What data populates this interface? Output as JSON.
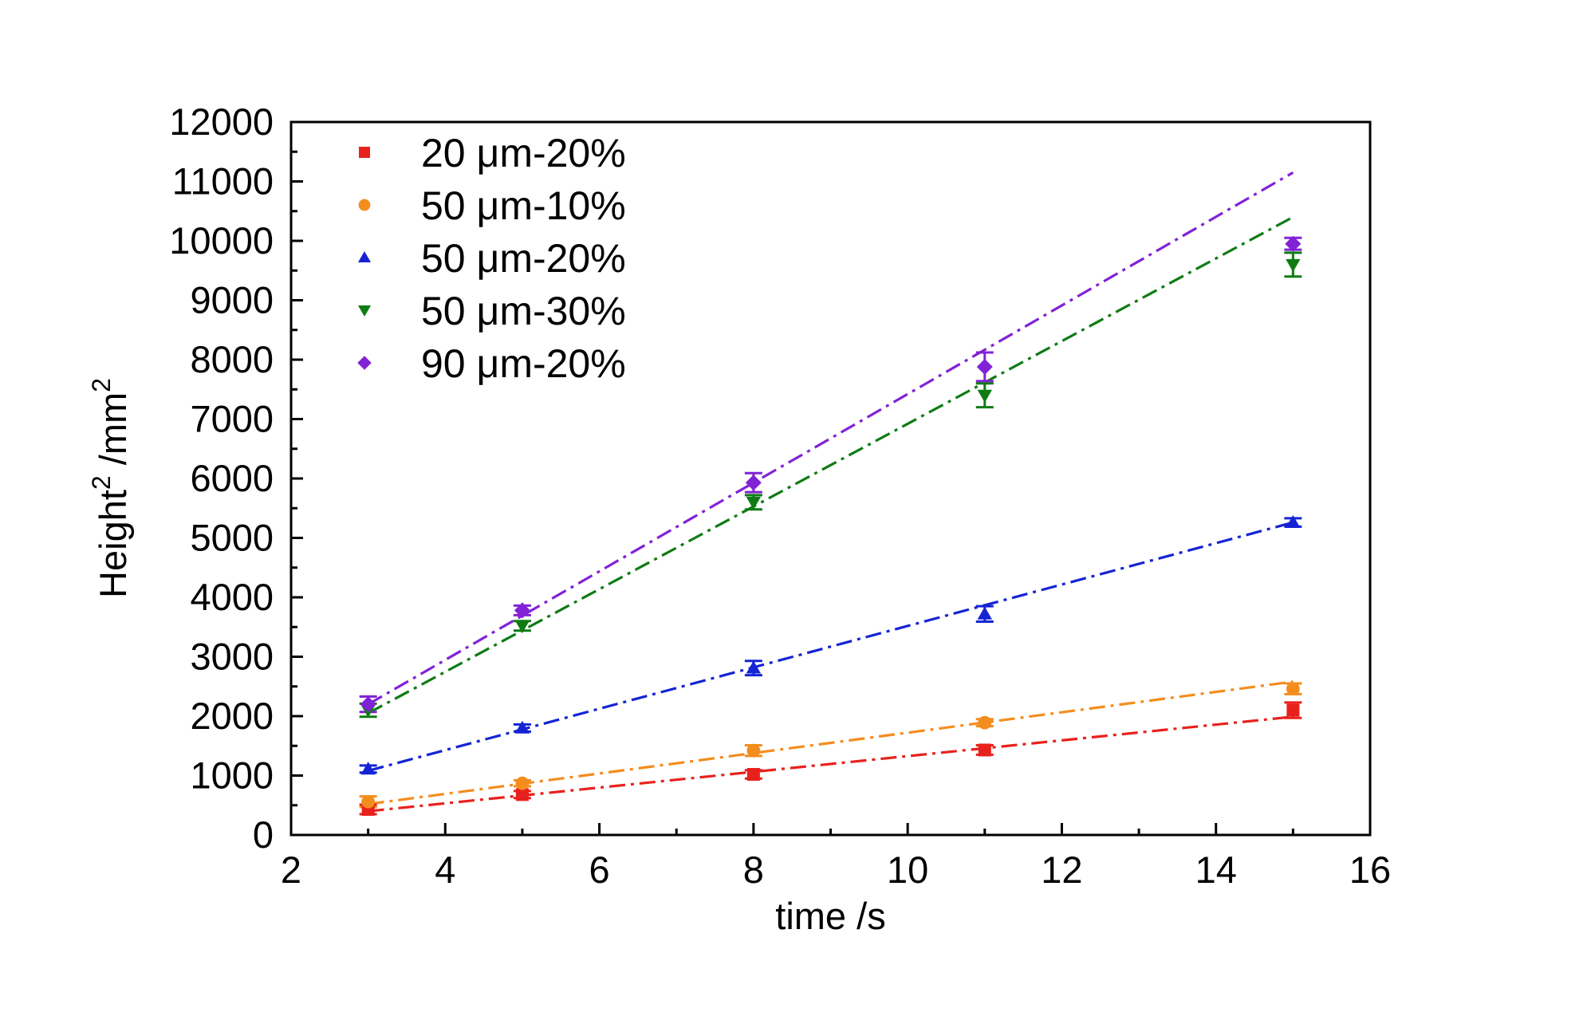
{
  "chart_data": {
    "type": "scatter",
    "title": "",
    "xlabel": "time /s",
    "ylabel": {
      "main": "Height",
      "sup1": "2",
      "unit": " /mm",
      "sup2": "2"
    },
    "xlim": [
      2,
      16
    ],
    "ylim": [
      0,
      12000
    ],
    "x_major_ticks": [
      2,
      4,
      6,
      8,
      10,
      12,
      14,
      16
    ],
    "x_tick_labels": [
      "2",
      "4",
      "6",
      "8",
      "10",
      "12",
      "14",
      "16"
    ],
    "y_major_ticks": [
      0,
      1000,
      2000,
      3000,
      4000,
      5000,
      6000,
      7000,
      8000,
      9000,
      10000,
      11000,
      12000
    ],
    "y_tick_labels": [
      "0",
      "1000",
      "2000",
      "3000",
      "4000",
      "5000",
      "6000",
      "7000",
      "8000",
      "9000",
      "10000",
      "11000",
      "12000"
    ],
    "x_minor_step": 1,
    "y_minor_step": 500,
    "legend_position": "top-left",
    "grid": false,
    "x": [
      3,
      5,
      8,
      11,
      15
    ],
    "series": [
      {
        "name": "20 μm-20%",
        "color": "#e8211c",
        "marker": "square",
        "values": [
          430,
          680,
          1020,
          1430,
          2100
        ],
        "errors": [
          80,
          60,
          70,
          80,
          130
        ],
        "fit": {
          "x": [
            3,
            15
          ],
          "y": [
            400,
            1990
          ]
        }
      },
      {
        "name": "50 μm-10%",
        "color": "#f38d1e",
        "marker": "circle",
        "values": [
          560,
          870,
          1420,
          1890,
          2460
        ],
        "errors": [
          90,
          50,
          90,
          60,
          90
        ],
        "fit": {
          "x": [
            3,
            15
          ],
          "y": [
            520,
            2580
          ]
        }
      },
      {
        "name": "50 μm-20%",
        "color": "#1424d4",
        "marker": "triangle-up",
        "values": [
          1110,
          1800,
          2810,
          3720,
          5260
        ],
        "errors": [
          60,
          60,
          120,
          130,
          70
        ],
        "fit": {
          "x": [
            3,
            15
          ],
          "y": [
            1080,
            5260
          ]
        }
      },
      {
        "name": "50 μm-30%",
        "color": "#0f7b14",
        "marker": "triangle-down",
        "values": [
          2100,
          3520,
          5600,
          7400,
          9600
        ],
        "errors": [
          110,
          80,
          120,
          200,
          200
        ],
        "fit": {
          "x": [
            3,
            15
          ],
          "y": [
            2050,
            10400
          ]
        }
      },
      {
        "name": "90 μm-20%",
        "color": "#8122d6",
        "marker": "diamond",
        "values": [
          2200,
          3780,
          5930,
          7880,
          9950
        ],
        "errors": [
          130,
          80,
          160,
          240,
          100
        ],
        "fit": {
          "x": [
            3,
            15
          ],
          "y": [
            2200,
            11150
          ]
        }
      }
    ]
  }
}
